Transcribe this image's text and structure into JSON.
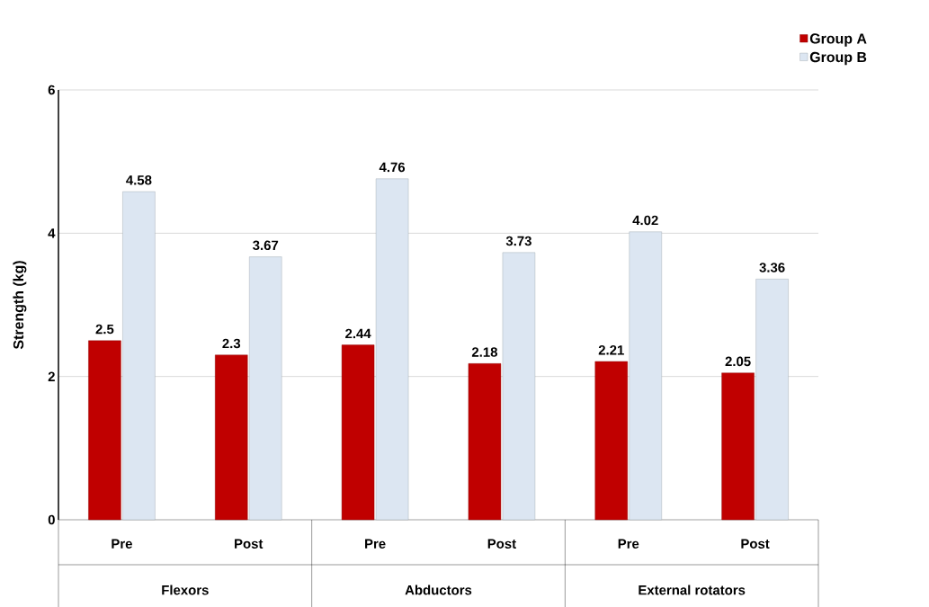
{
  "chart_data": {
    "type": "bar",
    "ylabel": "Strength (kg)",
    "categories": [
      "Pre",
      "Post",
      "Pre",
      "Post",
      "Pre",
      "Post"
    ],
    "series": [
      {
        "name": "Group A",
        "color": "#c00000",
        "values": [
          2.5,
          2.3,
          2.44,
          2.18,
          2.21,
          2.05
        ]
      },
      {
        "name": "Group B",
        "color": "#dce6f2",
        "values": [
          4.58,
          3.67,
          4.76,
          3.73,
          4.02,
          3.36
        ]
      }
    ],
    "ylim": [
      0,
      6
    ],
    "yticks": [
      0,
      2,
      4,
      6
    ],
    "grid": "y",
    "legend": "top right",
    "data_labels": true,
    "annotations": [
      "Flexors",
      "Abductors",
      "External rotators"
    ]
  }
}
